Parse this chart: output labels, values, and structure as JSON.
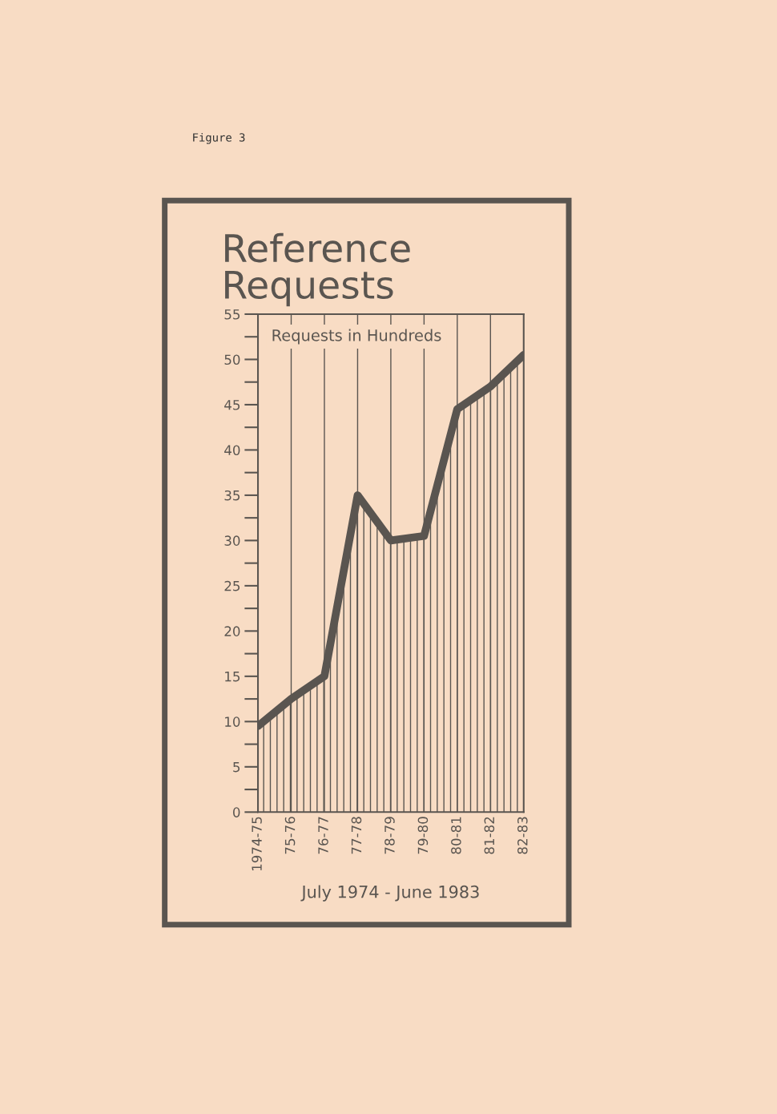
{
  "chart_data": {
    "type": "area",
    "title": "Reference Requests",
    "xlabel": "July 1974 - June 1983",
    "annotations": [
      "Figure 3",
      "Requests in Hundreds"
    ],
    "categories": [
      "1974-75",
      "75-76",
      "76-77",
      "77-78",
      "78-79",
      "79-80",
      "80-81",
      "81-82",
      "82-83"
    ],
    "series": [
      {
        "color": "#5a5550",
        "values": [
          9.5,
          12.5,
          15,
          35,
          30,
          30.5,
          44.5,
          47,
          50.5
        ]
      }
    ],
    "ylim": [
      0,
      55
    ],
    "yticks": [
      0,
      5,
      10,
      15,
      20,
      25,
      30,
      35,
      40,
      45,
      50,
      55
    ],
    "grid": "x",
    "legend": false
  }
}
